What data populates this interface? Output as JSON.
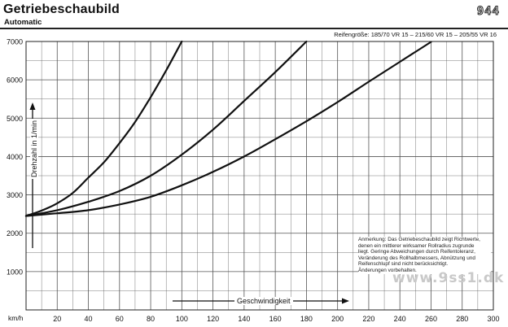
{
  "header": {
    "title": "Getriebeschaubild",
    "subtitle": "Automatic",
    "model_logo": "944",
    "tire_sizes": "Reifengröße: 185/70 VR 15 – 215/60 VR 15 – 205/55 VR 16"
  },
  "note_lines": [
    "Anmerkung: Das Getriebeschaubild zeigt Richtwerte,",
    "denen ein mittlerer wirksamer Rollradius zugrunde",
    "liegt. Geringe Abweichungen durch Reifentoleranz,",
    "Veränderung des Rollhalbmessers, Abnützung und",
    "Reifenschlupf sind nicht berücksichtigt.",
    "Änderungen vorbehalten."
  ],
  "watermark": "www.9ss1.dk",
  "x_unit": "km/h",
  "colors": {
    "line": "#111111",
    "grid": "#555555",
    "background": "#ffffff"
  },
  "chart_data": {
    "type": "line",
    "xlabel": "Geschwindigkeit",
    "ylabel": "Drehzahl in 1/min",
    "xlim": [
      0,
      300
    ],
    "ylim": [
      0,
      7000
    ],
    "x_ticks": [
      20,
      40,
      60,
      80,
      100,
      120,
      140,
      160,
      180,
      200,
      220,
      240,
      260,
      280,
      300
    ],
    "y_ticks": [
      1000,
      2000,
      3000,
      4000,
      5000,
      6000,
      7000
    ],
    "grid": true,
    "series": [
      {
        "x": [
          0,
          10,
          20,
          30,
          40,
          50,
          60,
          70,
          80,
          90,
          100
        ],
        "y": [
          2450,
          2590,
          2780,
          3050,
          3450,
          3850,
          4350,
          4900,
          5550,
          6250,
          7000
        ]
      },
      {
        "x": [
          0,
          20,
          40,
          60,
          80,
          100,
          120,
          140,
          160,
          180
        ],
        "y": [
          2450,
          2600,
          2820,
          3100,
          3500,
          4050,
          4700,
          5450,
          6200,
          7000
        ]
      },
      {
        "x": [
          0,
          20,
          40,
          60,
          80,
          100,
          120,
          140,
          160,
          180,
          200,
          220,
          240,
          260
        ],
        "y": [
          2450,
          2520,
          2600,
          2750,
          2950,
          3250,
          3600,
          4000,
          4450,
          4920,
          5420,
          5950,
          6470,
          6990
        ]
      }
    ]
  }
}
